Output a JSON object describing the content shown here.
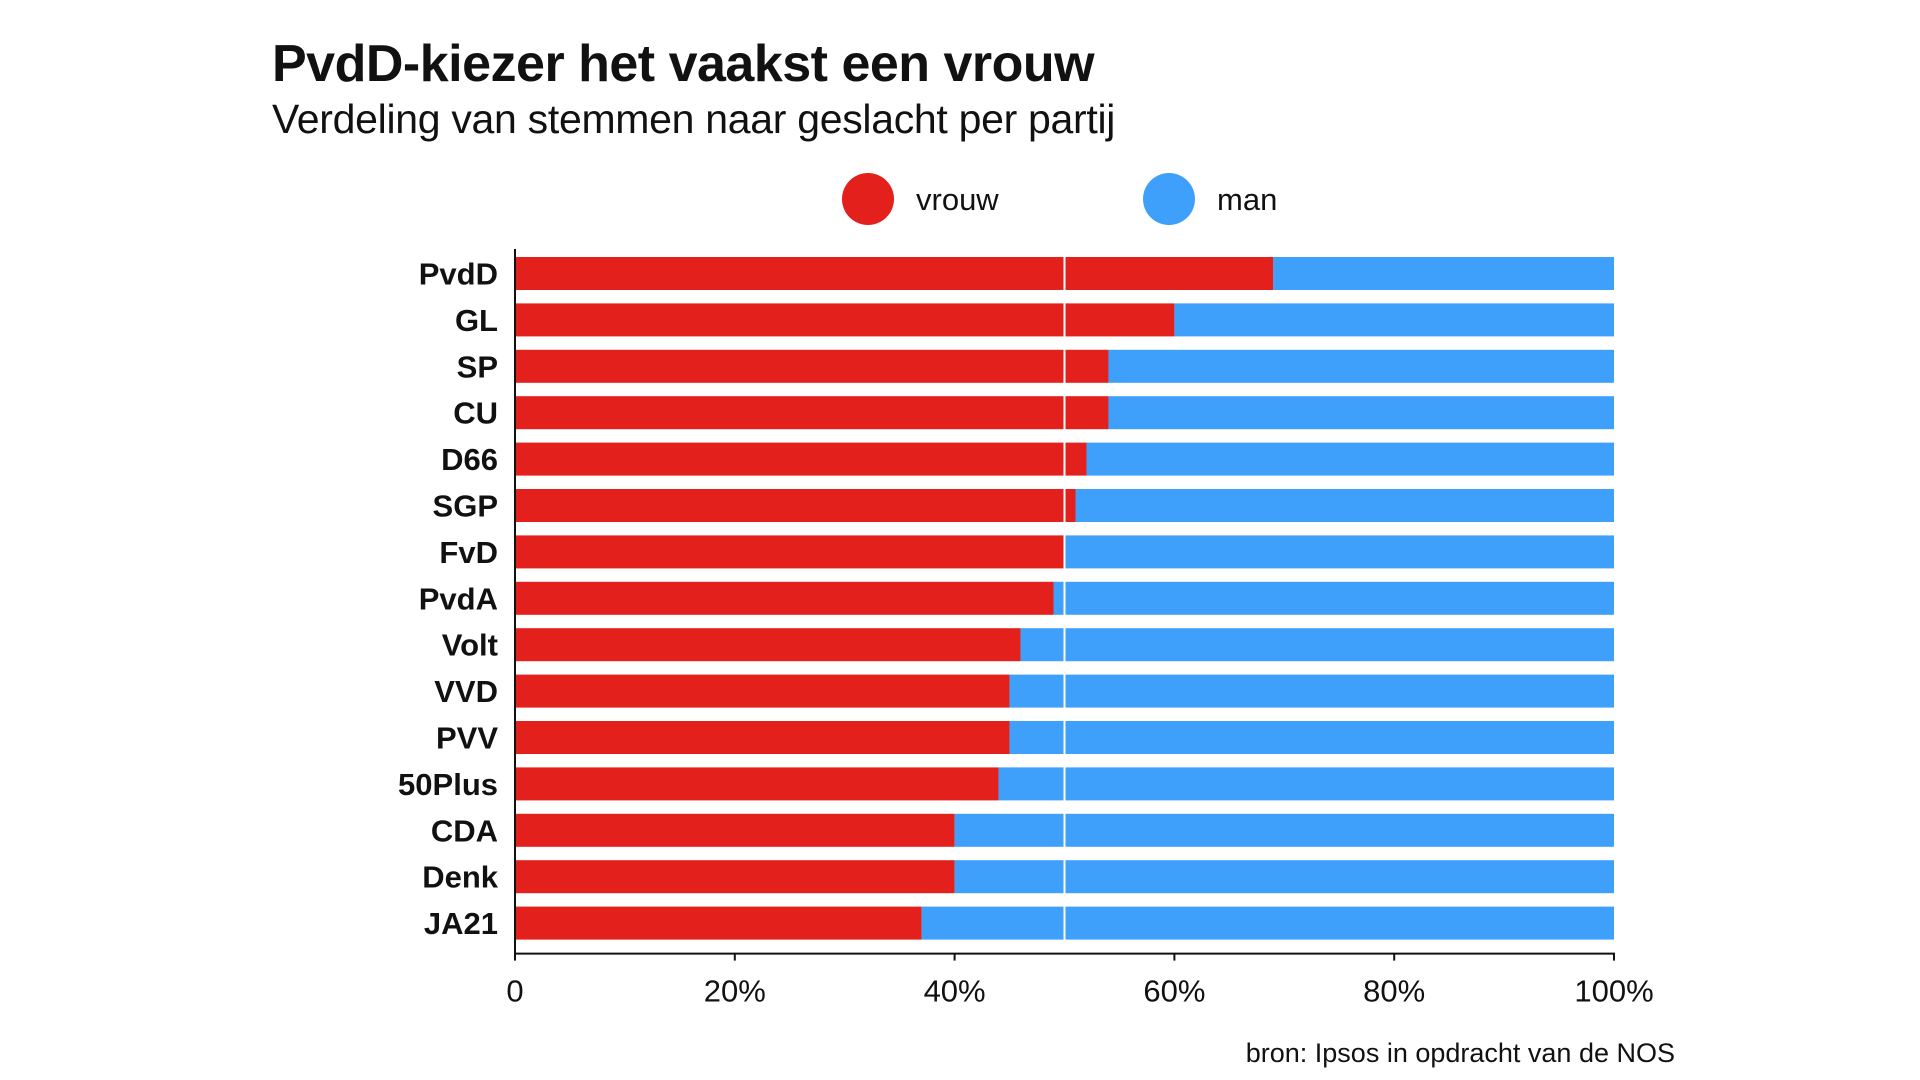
{
  "title": "PvdD-kiezer het vaakst een vrouw",
  "subtitle": "Verdeling van stemmen naar geslacht per partij",
  "source": "bron: Ipsos in opdracht van de NOS",
  "colors": {
    "vrouw": "#e3201b",
    "man": "#3fa0fb",
    "reference_line": "#ffffff",
    "axis": "#111111"
  },
  "chart_data": {
    "type": "bar",
    "orientation": "horizontal",
    "stacked": true,
    "legend_position": "top",
    "categories": [
      "PvdD",
      "GL",
      "SP",
      "CU",
      "D66",
      "SGP",
      "FvD",
      "PvdA",
      "Volt",
      "VVD",
      "PVV",
      "50Plus",
      "CDA",
      "Denk",
      "JA21"
    ],
    "series": [
      {
        "name": "vrouw",
        "values": [
          69,
          60,
          54,
          54,
          52,
          51,
          50,
          49,
          46,
          45,
          45,
          44,
          40,
          40,
          37
        ]
      },
      {
        "name": "man",
        "values": [
          31,
          40,
          46,
          46,
          48,
          49,
          50,
          51,
          54,
          55,
          55,
          56,
          60,
          60,
          63
        ]
      }
    ],
    "xlim": [
      0,
      100
    ],
    "xticks": [
      0,
      20,
      40,
      60,
      80,
      100
    ],
    "xtick_labels": [
      "0",
      "20%",
      "40%",
      "60%",
      "80%",
      "100%"
    ],
    "reference_line_x": 50,
    "grid": false
  }
}
